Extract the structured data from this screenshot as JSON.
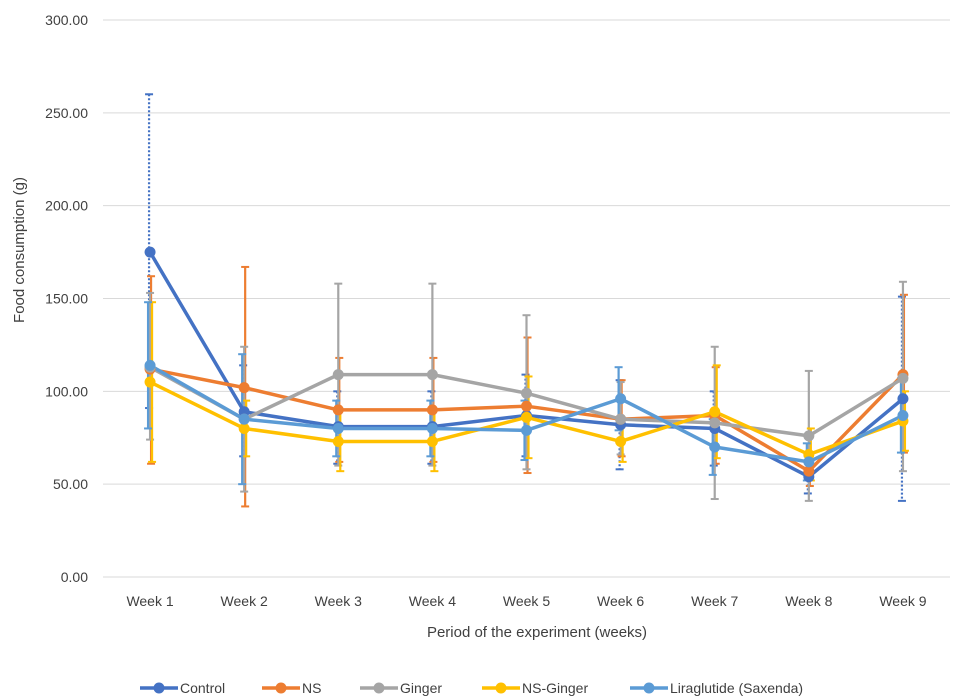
{
  "chart_data": {
    "type": "line",
    "title": "",
    "xlabel": "Period of the experiment (weeks)",
    "ylabel": "Food consumption (g)",
    "ylim": [
      0,
      300
    ],
    "yticks": [
      "0.00",
      "50.00",
      "100.00",
      "150.00",
      "200.00",
      "250.00",
      "300.00"
    ],
    "categories": [
      "Week 1",
      "Week 2",
      "Week 3",
      "Week 4",
      "Week  5",
      "Week 6",
      "Week 7",
      "Week 8",
      "Week 9"
    ],
    "grid": "horizontal",
    "legend_position": "bottom",
    "series": [
      {
        "name": "Control",
        "color": "#4472C4",
        "error_style": "dotted",
        "values": [
          175,
          89,
          81,
          81,
          87,
          82,
          80,
          54,
          96
        ],
        "err_high": [
          260,
          114,
          100,
          100,
          109,
          106,
          100,
          65,
          151
        ],
        "err_low": [
          91,
          65,
          61,
          61,
          65,
          58,
          60,
          45,
          41
        ]
      },
      {
        "name": "NS",
        "color": "#ED7D31",
        "error_style": "solid",
        "values": [
          112,
          102,
          90,
          90,
          92,
          85,
          87,
          57,
          109
        ],
        "err_high": [
          162,
          167,
          118,
          118,
          129,
          106,
          113,
          65,
          152
        ],
        "err_low": [
          61,
          38,
          62,
          62,
          56,
          65,
          61,
          49,
          67
        ]
      },
      {
        "name": "Ginger",
        "color": "#A5A5A5",
        "error_style": "solid",
        "values": [
          113,
          85,
          109,
          109,
          99,
          85,
          83,
          76,
          107
        ],
        "err_high": [
          153,
          124,
          158,
          158,
          141,
          105,
          124,
          111,
          159
        ],
        "err_low": [
          74,
          46,
          60,
          60,
          58,
          66,
          42,
          41,
          57
        ]
      },
      {
        "name": "NS-Ginger",
        "color": "#FFC000",
        "error_style": "solid",
        "values": [
          105,
          80,
          73,
          73,
          86,
          73,
          89,
          66,
          84
        ],
        "err_high": [
          148,
          95,
          90,
          90,
          108,
          85,
          114,
          80,
          100
        ],
        "err_low": [
          62,
          65,
          57,
          57,
          64,
          62,
          64,
          52,
          68
        ]
      },
      {
        "name": "Liraglutide (Saxenda)",
        "color": "#5B9BD5",
        "error_style": "solid",
        "values": [
          114,
          85,
          80,
          80,
          79,
          96,
          70,
          62,
          87
        ],
        "err_high": [
          148,
          120,
          95,
          95,
          95,
          113,
          85,
          72,
          107
        ],
        "err_low": [
          80,
          50,
          65,
          65,
          63,
          79,
          55,
          52,
          67
        ]
      }
    ]
  }
}
